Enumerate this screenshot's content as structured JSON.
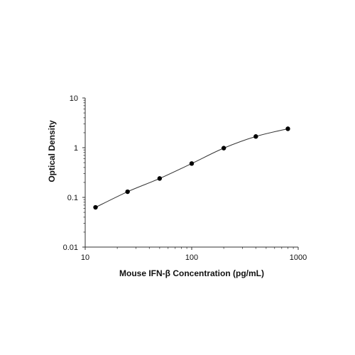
{
  "chart_data": {
    "type": "scatter",
    "title": "",
    "xlabel": "Mouse IFN-β Concentration (pg/mL)",
    "ylabel": "Optical Density",
    "x_scale": "log",
    "y_scale": "log",
    "xlim": [
      10,
      1000
    ],
    "ylim": [
      0.01,
      10
    ],
    "x_ticks": [
      10,
      100,
      1000
    ],
    "x_tick_labels": [
      "10",
      "100",
      "1000"
    ],
    "y_ticks": [
      0.01,
      0.1,
      1,
      10
    ],
    "y_tick_labels": [
      "0.01",
      "0.1",
      "1",
      "10"
    ],
    "grid": false,
    "legend": "none",
    "series": [
      {
        "x": [
          12.5,
          25,
          50,
          100,
          200,
          400,
          800
        ],
        "y": [
          0.063,
          0.13,
          0.24,
          0.48,
          0.98,
          1.68,
          2.4
        ],
        "marker": "filled-circle",
        "fit_line": "smooth-curve"
      }
    ],
    "colors": {
      "marker": "#000000",
      "curve": "#333333",
      "axis": "#333333"
    }
  }
}
